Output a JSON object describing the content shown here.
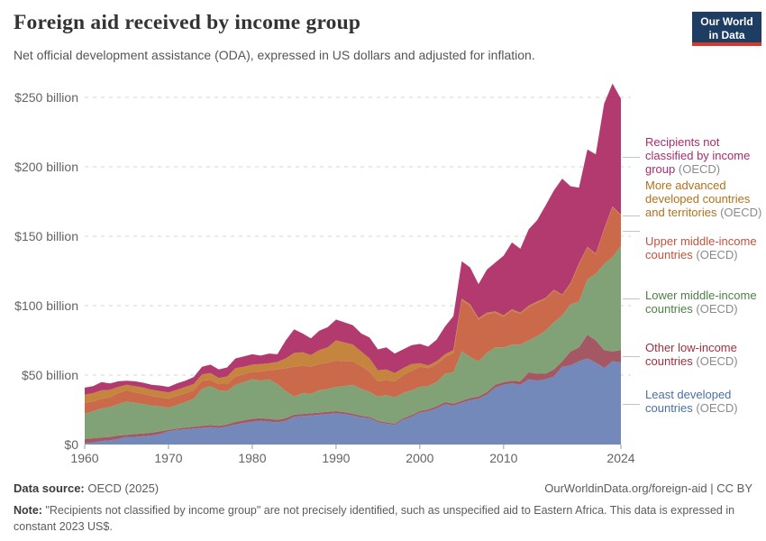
{
  "header": {
    "title": "Foreign aid received by income group",
    "subtitle": "Net official development assistance (ODA), expressed in US dollars and adjusted for inflation.",
    "logo": {
      "line1": "Our World",
      "line2": "in Data",
      "bg_color": "#1d3d63",
      "accent_color": "#d7382e"
    }
  },
  "chart_data": {
    "type": "area",
    "stacked": true,
    "title": "Foreign aid received by income group",
    "unit": "US$ (constant 2023), billions",
    "ylim": [
      0,
      250
    ],
    "grid": true,
    "legend_position": "right",
    "y_ticks": [
      {
        "value": 0,
        "label": "$0"
      },
      {
        "value": 50,
        "label": "$50 billion"
      },
      {
        "value": 100,
        "label": "$100 billion"
      },
      {
        "value": 150,
        "label": "$150 billion"
      },
      {
        "value": 200,
        "label": "$200 billion"
      },
      {
        "value": 250,
        "label": "$250 billion"
      }
    ],
    "x_ticks": [
      1960,
      1970,
      1980,
      1990,
      2000,
      2010,
      2024
    ],
    "x": [
      1960,
      1961,
      1962,
      1963,
      1964,
      1965,
      1966,
      1967,
      1968,
      1969,
      1970,
      1971,
      1972,
      1973,
      1974,
      1975,
      1976,
      1977,
      1978,
      1979,
      1980,
      1981,
      1982,
      1983,
      1984,
      1985,
      1986,
      1987,
      1988,
      1989,
      1990,
      1991,
      1992,
      1993,
      1994,
      1995,
      1996,
      1997,
      1998,
      1999,
      2000,
      2001,
      2002,
      2003,
      2004,
      2005,
      2006,
      2007,
      2008,
      2009,
      2010,
      2011,
      2012,
      2013,
      2014,
      2015,
      2016,
      2017,
      2018,
      2019,
      2020,
      2021,
      2022,
      2023,
      2024
    ],
    "series": [
      {
        "key": "least-developed-countries",
        "label": "Least developed countries",
        "suffix": "(OECD)",
        "color": "#7389b9",
        "label_color": "#4a6fa5",
        "values": [
          1,
          1.5,
          2.5,
          3,
          4,
          5.5,
          5.5,
          6,
          6.5,
          7.5,
          9.5,
          10.5,
          11,
          11.5,
          12,
          12.5,
          12,
          13,
          14.5,
          15.5,
          16.5,
          17,
          16.5,
          16,
          17,
          20,
          20.5,
          21,
          21.5,
          22,
          22.5,
          22,
          21,
          19.5,
          19,
          16,
          15,
          14,
          18,
          20,
          23,
          24,
          26,
          29,
          28,
          30,
          32,
          33,
          36,
          41,
          43,
          44,
          43,
          47,
          46,
          47,
          49,
          56,
          57,
          60,
          62,
          59,
          55,
          60,
          59
        ]
      },
      {
        "key": "other-low-income-countries",
        "label": "Other low-income countries",
        "suffix": "(OECD)",
        "color": "#a35864",
        "label_color": "#9e2f3f",
        "values": [
          3,
          3,
          2.5,
          2.5,
          2.5,
          1.5,
          2,
          2,
          2,
          2,
          1,
          1,
          1.2,
          1.3,
          1.5,
          1.5,
          1.5,
          1.5,
          1.8,
          2,
          2,
          2,
          2,
          1.8,
          2,
          1.5,
          1.5,
          1.5,
          1.5,
          1.5,
          1.5,
          1.3,
          1.2,
          1.2,
          1,
          1,
          1,
          1,
          1,
          1.2,
          1.2,
          1.3,
          1.5,
          1.5,
          1.5,
          1.5,
          1.5,
          1.6,
          1.8,
          2,
          2,
          2,
          2.5,
          5,
          5,
          4,
          5,
          4,
          10,
          10,
          17,
          16,
          13,
          7,
          9
        ]
      },
      {
        "key": "lower-middle-income-countries",
        "label": "Lower middle-income countries",
        "suffix": "(OECD)",
        "color": "#81a276",
        "label_color": "#4c8045",
        "values": [
          18,
          19.5,
          21,
          21.5,
          22.5,
          24,
          22.5,
          21,
          19.5,
          18,
          16,
          17,
          18.3,
          20.2,
          26.5,
          28,
          25.5,
          24,
          26.7,
          27.5,
          28.5,
          27,
          28.5,
          25.7,
          19.5,
          13,
          15,
          14,
          16,
          16.5,
          17.5,
          18.7,
          20.8,
          19.3,
          18,
          17.5,
          19.5,
          19,
          18,
          17.8,
          17.3,
          16.7,
          17.5,
          20.5,
          22.5,
          35.5,
          29.5,
          25.4,
          28.2,
          27,
          25,
          26,
          26.5,
          23,
          27,
          31,
          34,
          33,
          34,
          33,
          40,
          48,
          62,
          68,
          75
        ]
      },
      {
        "key": "upper-middle-income-countries",
        "label": "Upper middle-income countries",
        "suffix": "(OECD)",
        "color": "#cb6a4b",
        "label_color": "#c5523c",
        "values": [
          8,
          7,
          7,
          7,
          8,
          8,
          7.5,
          7.5,
          7,
          6.5,
          6.5,
          6.5,
          6.5,
          6,
          6,
          4.5,
          4.5,
          5,
          6,
          5.5,
          5.5,
          6.5,
          6.5,
          10.5,
          16.5,
          21.5,
          20,
          19.5,
          19,
          19,
          19,
          18,
          17,
          16.5,
          14.5,
          11,
          11,
          11.5,
          13,
          14,
          14.5,
          13,
          13,
          12,
          14,
          37,
          37,
          30,
          28,
          25,
          22,
          24.5,
          22,
          24,
          24,
          23,
          23,
          14.5,
          15,
          27,
          23,
          14,
          25,
          36,
          22
        ]
      },
      {
        "key": "more-advanced-developed-countries-and-territories",
        "label": "More advanced developed countries and territories",
        "suffix": "(OECD)",
        "color": "#c5853f",
        "label_color": "#b3701b",
        "values": [
          6,
          6,
          6,
          5.5,
          4.5,
          4,
          4.5,
          4.5,
          4.5,
          4.5,
          4.5,
          4.5,
          4.5,
          4.5,
          4.5,
          5,
          4.5,
          5.5,
          6,
          5.5,
          5,
          5.5,
          5,
          5.5,
          7,
          10,
          9.5,
          8.5,
          10,
          11,
          14.5,
          13.5,
          12,
          10.5,
          9.5,
          8,
          7.5,
          6,
          5,
          5,
          2.5,
          2,
          2,
          2,
          2,
          1,
          1,
          1,
          1,
          1,
          1,
          1,
          1,
          1,
          1,
          0.5,
          0.5,
          0.5,
          0.5,
          0.5,
          0.5,
          0.5,
          0.5,
          0.5,
          0.5
        ]
      },
      {
        "key": "recipients-not-classified-by-income-group",
        "label": "Recipients not classified by income group",
        "suffix": "(OECD)",
        "color": "#b23a6e",
        "label_color": "#a82c6e",
        "values": [
          5,
          5,
          6,
          4.5,
          4,
          3,
          3.5,
          3.5,
          3.5,
          4,
          4,
          4.5,
          4.5,
          5,
          5.5,
          6,
          6,
          6.5,
          7,
          7.5,
          7.5,
          6,
          7,
          5.5,
          13,
          17,
          13.5,
          12,
          14,
          14.5,
          15,
          14.5,
          14,
          13,
          15,
          15,
          16,
          14,
          13.5,
          13.5,
          14,
          13.5,
          15.5,
          20,
          24.5,
          27,
          26.5,
          24.5,
          31,
          35,
          43,
          48,
          46,
          55,
          58.5,
          66.5,
          71.5,
          83.5,
          69.5,
          54.5,
          70,
          71.5,
          90,
          88.5,
          83.5
        ]
      }
    ]
  },
  "footer": {
    "source_label": "Data source:",
    "source_text": "OECD (2025)",
    "citation": "OurWorldinData.org/foreign-aid | CC BY",
    "note_label": "Note:",
    "note_text": "\"Recipients not classified by income group\" are not precisely identified, such as unspecified aid to Eastern Africa. This data is expressed in constant 2023 US$."
  }
}
